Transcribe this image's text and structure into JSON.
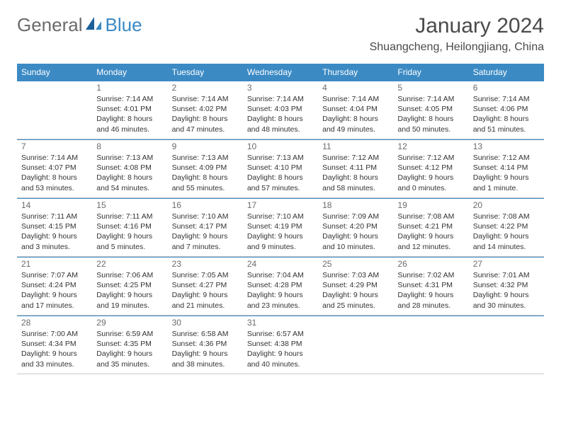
{
  "brand": {
    "general": "General",
    "blue": "Blue"
  },
  "title": "January 2024",
  "location": "Shuangcheng, Heilongjiang, China",
  "colors": {
    "accent": "#3b8ac4",
    "text": "#333333",
    "muted": "#6b6b6b",
    "rule": "#c9c9c9",
    "bg": "#ffffff"
  },
  "fonts": {
    "title_size": 30,
    "location_size": 16,
    "head_size": 12,
    "daynum_size": 12,
    "detail_size": 10.5
  },
  "day_headers": [
    "Sunday",
    "Monday",
    "Tuesday",
    "Wednesday",
    "Thursday",
    "Friday",
    "Saturday"
  ],
  "weeks": [
    [
      {
        "n": "",
        "lines": [
          "",
          "",
          "",
          ""
        ]
      },
      {
        "n": "1",
        "lines": [
          "Sunrise: 7:14 AM",
          "Sunset: 4:01 PM",
          "Daylight: 8 hours",
          "and 46 minutes."
        ]
      },
      {
        "n": "2",
        "lines": [
          "Sunrise: 7:14 AM",
          "Sunset: 4:02 PM",
          "Daylight: 8 hours",
          "and 47 minutes."
        ]
      },
      {
        "n": "3",
        "lines": [
          "Sunrise: 7:14 AM",
          "Sunset: 4:03 PM",
          "Daylight: 8 hours",
          "and 48 minutes."
        ]
      },
      {
        "n": "4",
        "lines": [
          "Sunrise: 7:14 AM",
          "Sunset: 4:04 PM",
          "Daylight: 8 hours",
          "and 49 minutes."
        ]
      },
      {
        "n": "5",
        "lines": [
          "Sunrise: 7:14 AM",
          "Sunset: 4:05 PM",
          "Daylight: 8 hours",
          "and 50 minutes."
        ]
      },
      {
        "n": "6",
        "lines": [
          "Sunrise: 7:14 AM",
          "Sunset: 4:06 PM",
          "Daylight: 8 hours",
          "and 51 minutes."
        ]
      }
    ],
    [
      {
        "n": "7",
        "lines": [
          "Sunrise: 7:14 AM",
          "Sunset: 4:07 PM",
          "Daylight: 8 hours",
          "and 53 minutes."
        ]
      },
      {
        "n": "8",
        "lines": [
          "Sunrise: 7:13 AM",
          "Sunset: 4:08 PM",
          "Daylight: 8 hours",
          "and 54 minutes."
        ]
      },
      {
        "n": "9",
        "lines": [
          "Sunrise: 7:13 AM",
          "Sunset: 4:09 PM",
          "Daylight: 8 hours",
          "and 55 minutes."
        ]
      },
      {
        "n": "10",
        "lines": [
          "Sunrise: 7:13 AM",
          "Sunset: 4:10 PM",
          "Daylight: 8 hours",
          "and 57 minutes."
        ]
      },
      {
        "n": "11",
        "lines": [
          "Sunrise: 7:12 AM",
          "Sunset: 4:11 PM",
          "Daylight: 8 hours",
          "and 58 minutes."
        ]
      },
      {
        "n": "12",
        "lines": [
          "Sunrise: 7:12 AM",
          "Sunset: 4:12 PM",
          "Daylight: 9 hours",
          "and 0 minutes."
        ]
      },
      {
        "n": "13",
        "lines": [
          "Sunrise: 7:12 AM",
          "Sunset: 4:14 PM",
          "Daylight: 9 hours",
          "and 1 minute."
        ]
      }
    ],
    [
      {
        "n": "14",
        "lines": [
          "Sunrise: 7:11 AM",
          "Sunset: 4:15 PM",
          "Daylight: 9 hours",
          "and 3 minutes."
        ]
      },
      {
        "n": "15",
        "lines": [
          "Sunrise: 7:11 AM",
          "Sunset: 4:16 PM",
          "Daylight: 9 hours",
          "and 5 minutes."
        ]
      },
      {
        "n": "16",
        "lines": [
          "Sunrise: 7:10 AM",
          "Sunset: 4:17 PM",
          "Daylight: 9 hours",
          "and 7 minutes."
        ]
      },
      {
        "n": "17",
        "lines": [
          "Sunrise: 7:10 AM",
          "Sunset: 4:19 PM",
          "Daylight: 9 hours",
          "and 9 minutes."
        ]
      },
      {
        "n": "18",
        "lines": [
          "Sunrise: 7:09 AM",
          "Sunset: 4:20 PM",
          "Daylight: 9 hours",
          "and 10 minutes."
        ]
      },
      {
        "n": "19",
        "lines": [
          "Sunrise: 7:08 AM",
          "Sunset: 4:21 PM",
          "Daylight: 9 hours",
          "and 12 minutes."
        ]
      },
      {
        "n": "20",
        "lines": [
          "Sunrise: 7:08 AM",
          "Sunset: 4:22 PM",
          "Daylight: 9 hours",
          "and 14 minutes."
        ]
      }
    ],
    [
      {
        "n": "21",
        "lines": [
          "Sunrise: 7:07 AM",
          "Sunset: 4:24 PM",
          "Daylight: 9 hours",
          "and 17 minutes."
        ]
      },
      {
        "n": "22",
        "lines": [
          "Sunrise: 7:06 AM",
          "Sunset: 4:25 PM",
          "Daylight: 9 hours",
          "and 19 minutes."
        ]
      },
      {
        "n": "23",
        "lines": [
          "Sunrise: 7:05 AM",
          "Sunset: 4:27 PM",
          "Daylight: 9 hours",
          "and 21 minutes."
        ]
      },
      {
        "n": "24",
        "lines": [
          "Sunrise: 7:04 AM",
          "Sunset: 4:28 PM",
          "Daylight: 9 hours",
          "and 23 minutes."
        ]
      },
      {
        "n": "25",
        "lines": [
          "Sunrise: 7:03 AM",
          "Sunset: 4:29 PM",
          "Daylight: 9 hours",
          "and 25 minutes."
        ]
      },
      {
        "n": "26",
        "lines": [
          "Sunrise: 7:02 AM",
          "Sunset: 4:31 PM",
          "Daylight: 9 hours",
          "and 28 minutes."
        ]
      },
      {
        "n": "27",
        "lines": [
          "Sunrise: 7:01 AM",
          "Sunset: 4:32 PM",
          "Daylight: 9 hours",
          "and 30 minutes."
        ]
      }
    ],
    [
      {
        "n": "28",
        "lines": [
          "Sunrise: 7:00 AM",
          "Sunset: 4:34 PM",
          "Daylight: 9 hours",
          "and 33 minutes."
        ]
      },
      {
        "n": "29",
        "lines": [
          "Sunrise: 6:59 AM",
          "Sunset: 4:35 PM",
          "Daylight: 9 hours",
          "and 35 minutes."
        ]
      },
      {
        "n": "30",
        "lines": [
          "Sunrise: 6:58 AM",
          "Sunset: 4:36 PM",
          "Daylight: 9 hours",
          "and 38 minutes."
        ]
      },
      {
        "n": "31",
        "lines": [
          "Sunrise: 6:57 AM",
          "Sunset: 4:38 PM",
          "Daylight: 9 hours",
          "and 40 minutes."
        ]
      },
      {
        "n": "",
        "lines": [
          "",
          "",
          "",
          ""
        ]
      },
      {
        "n": "",
        "lines": [
          "",
          "",
          "",
          ""
        ]
      },
      {
        "n": "",
        "lines": [
          "",
          "",
          "",
          ""
        ]
      }
    ]
  ]
}
